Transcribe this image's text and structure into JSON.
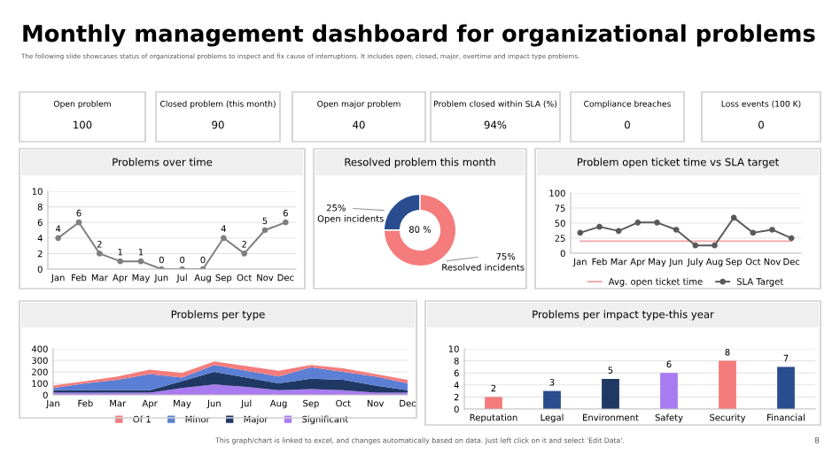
{
  "chart_data": [
    {
      "type": "other",
      "title": "Monthly management dashboard for organizational problems",
      "subtitle": "The following slide showcases status of organizational problems to inspect and fix cause of interruptions. It includes open, closed, major, overtime and impact type problems.",
      "categories": [
        "Open problem",
        "Closed problem (this month)",
        "Open major problem",
        "Problem closed within SLA (%)",
        "Compliance breaches",
        "Loss events (100 K)"
      ],
      "value_labels": [
        "100",
        "90",
        "40",
        "94%",
        "0",
        "0"
      ],
      "annotations": [
        "This graph/chart is linked to excel, and changes automatically based on data. Just left click on it and select 'Edit Data'.",
        "8"
      ]
    },
    {
      "type": "line",
      "title": "Problems over time",
      "categories": [
        "Jan",
        "Feb",
        "Mar",
        "Apr",
        "May",
        "Jun",
        "Jul",
        "Aug",
        "Sep",
        "Oct",
        "Nov",
        "Dec"
      ],
      "series": [
        {
          "color": "#7f7f7f",
          "values": [
            4,
            6,
            2,
            1,
            1,
            0,
            0,
            0,
            4,
            2,
            5,
            6
          ]
        }
      ],
      "ylim": [
        0,
        10
      ],
      "yticks": [
        0,
        2,
        4,
        6,
        8,
        10
      ],
      "grid": "y",
      "marker": "circle",
      "data_labels": true
    },
    {
      "type": "donut",
      "title": "Resolved problem this month",
      "categories": [
        "Open incidents",
        "Resolved incidents"
      ],
      "values": [
        25,
        75
      ],
      "colors": [
        "#2a4d8f",
        "#f47c7c"
      ],
      "value_labels": [
        "25%",
        "75%"
      ],
      "annotations": [
        "80 %"
      ]
    },
    {
      "type": "line",
      "title": "Problem open ticket time vs SLA target",
      "categories": [
        "Jan",
        "Feb",
        "Mar",
        "Apr",
        "May",
        "Jun",
        "July",
        "Aug",
        "Sep",
        "Oct",
        "Nov",
        "Dec"
      ],
      "series": [
        {
          "name": "Avg. open ticket time",
          "color": "#f4a6a6",
          "marker": "none",
          "values": [
            20,
            20,
            20,
            20,
            20,
            20,
            20,
            20,
            20,
            20,
            20,
            20
          ]
        },
        {
          "name": "SLA Target",
          "color": "#595959",
          "marker": "circle",
          "values": [
            34,
            44,
            37,
            51,
            51,
            39,
            13,
            13,
            59,
            34,
            39,
            25
          ]
        }
      ],
      "ylim": [
        0,
        100
      ],
      "yticks": [
        0,
        25,
        50,
        75,
        100
      ],
      "grid": "y",
      "legend": "bottom"
    },
    {
      "type": "area",
      "title": "Problems per type",
      "stacked": true,
      "categories": [
        "Jan",
        "Feb",
        "Mar",
        "Apr",
        "May",
        "Jun",
        "Jul",
        "Aug",
        "Sep",
        "Oct",
        "Nov",
        "Dec"
      ],
      "series": [
        {
          "name": "Significant",
          "color": "#a87cf0",
          "values": [
            20,
            20,
            20,
            20,
            60,
            90,
            70,
            40,
            50,
            40,
            20,
            20
          ]
        },
        {
          "name": "Major",
          "color": "#1f3864",
          "values": [
            20,
            20,
            20,
            20,
            60,
            110,
            80,
            60,
            90,
            90,
            60,
            20
          ]
        },
        {
          "name": "Minor",
          "color": "#5b7fd4",
          "values": [
            20,
            60,
            90,
            140,
            30,
            60,
            60,
            60,
            100,
            70,
            80,
            60
          ]
        },
        {
          "name": "Of 1",
          "color": "#f47c7c",
          "values": [
            20,
            20,
            30,
            40,
            40,
            30,
            40,
            50,
            20,
            30,
            20,
            30
          ]
        }
      ],
      "ylim": [
        0,
        400
      ],
      "yticks": [
        0,
        100,
        200,
        300,
        400
      ],
      "grid": "y",
      "legend": "bottom"
    },
    {
      "type": "bar",
      "title": "Problems per impact type-this year",
      "categories": [
        "Reputation",
        "Legal",
        "Environment",
        "Safety",
        "Security",
        "Financial"
      ],
      "values": [
        2,
        3,
        5,
        6,
        8,
        7
      ],
      "colors": [
        "#f47c7c",
        "#2a4d8f",
        "#1f3864",
        "#a87cf0",
        "#f47c7c",
        "#2a4d8f"
      ],
      "ylim": [
        0,
        10
      ],
      "yticks": [
        0,
        2,
        4,
        6,
        8,
        10
      ],
      "grid": "y",
      "data_labels": true
    }
  ]
}
